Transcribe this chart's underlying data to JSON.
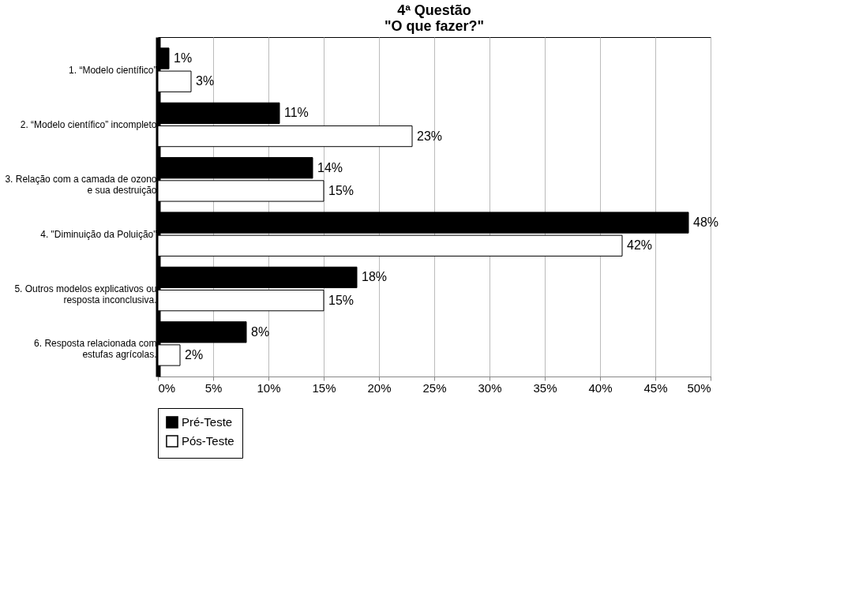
{
  "chart_data": {
    "type": "bar",
    "orientation": "horizontal",
    "title": "4ª Questão\n\"O que fazer?\"",
    "categories": [
      "1. “Modelo científico”",
      "2. “Modelo científico” incompleto",
      "3. Relação com a camada de ozono\ne sua destruição",
      "4. \"Diminuição da Poluição\"",
      "5. Outros modelos explicativos ou\nresposta inconclusiva.",
      "6. Resposta relacionada com\nestufas agrícolas."
    ],
    "series": [
      {
        "name": "Pré-Teste",
        "color": "#000000",
        "values": [
          1,
          11,
          14,
          48,
          18,
          8
        ],
        "value_labels": [
          "1%",
          "11%",
          "14%",
          "48%",
          "18%",
          "8%"
        ]
      },
      {
        "name": "Pós-Teste",
        "color": "#ffffff",
        "values": [
          3,
          23,
          15,
          42,
          15,
          2
        ],
        "value_labels": [
          "3%",
          "23%",
          "15%",
          "42%",
          "15%",
          "2%"
        ]
      }
    ],
    "xlim": [
      0,
      50
    ],
    "xticks": [
      {
        "value": 0,
        "label": "0%"
      },
      {
        "value": 5,
        "label": "5%"
      },
      {
        "value": 10,
        "label": "10%"
      },
      {
        "value": 15,
        "label": "15%"
      },
      {
        "value": 20,
        "label": "20%"
      },
      {
        "value": 25,
        "label": "25%"
      },
      {
        "value": 30,
        "label": "30%"
      },
      {
        "value": 35,
        "label": "35%"
      },
      {
        "value": 40,
        "label": "40%"
      },
      {
        "value": 45,
        "label": "45%"
      },
      {
        "value": 50,
        "label": "50%"
      }
    ],
    "grid": "x",
    "legend": "bottom"
  }
}
